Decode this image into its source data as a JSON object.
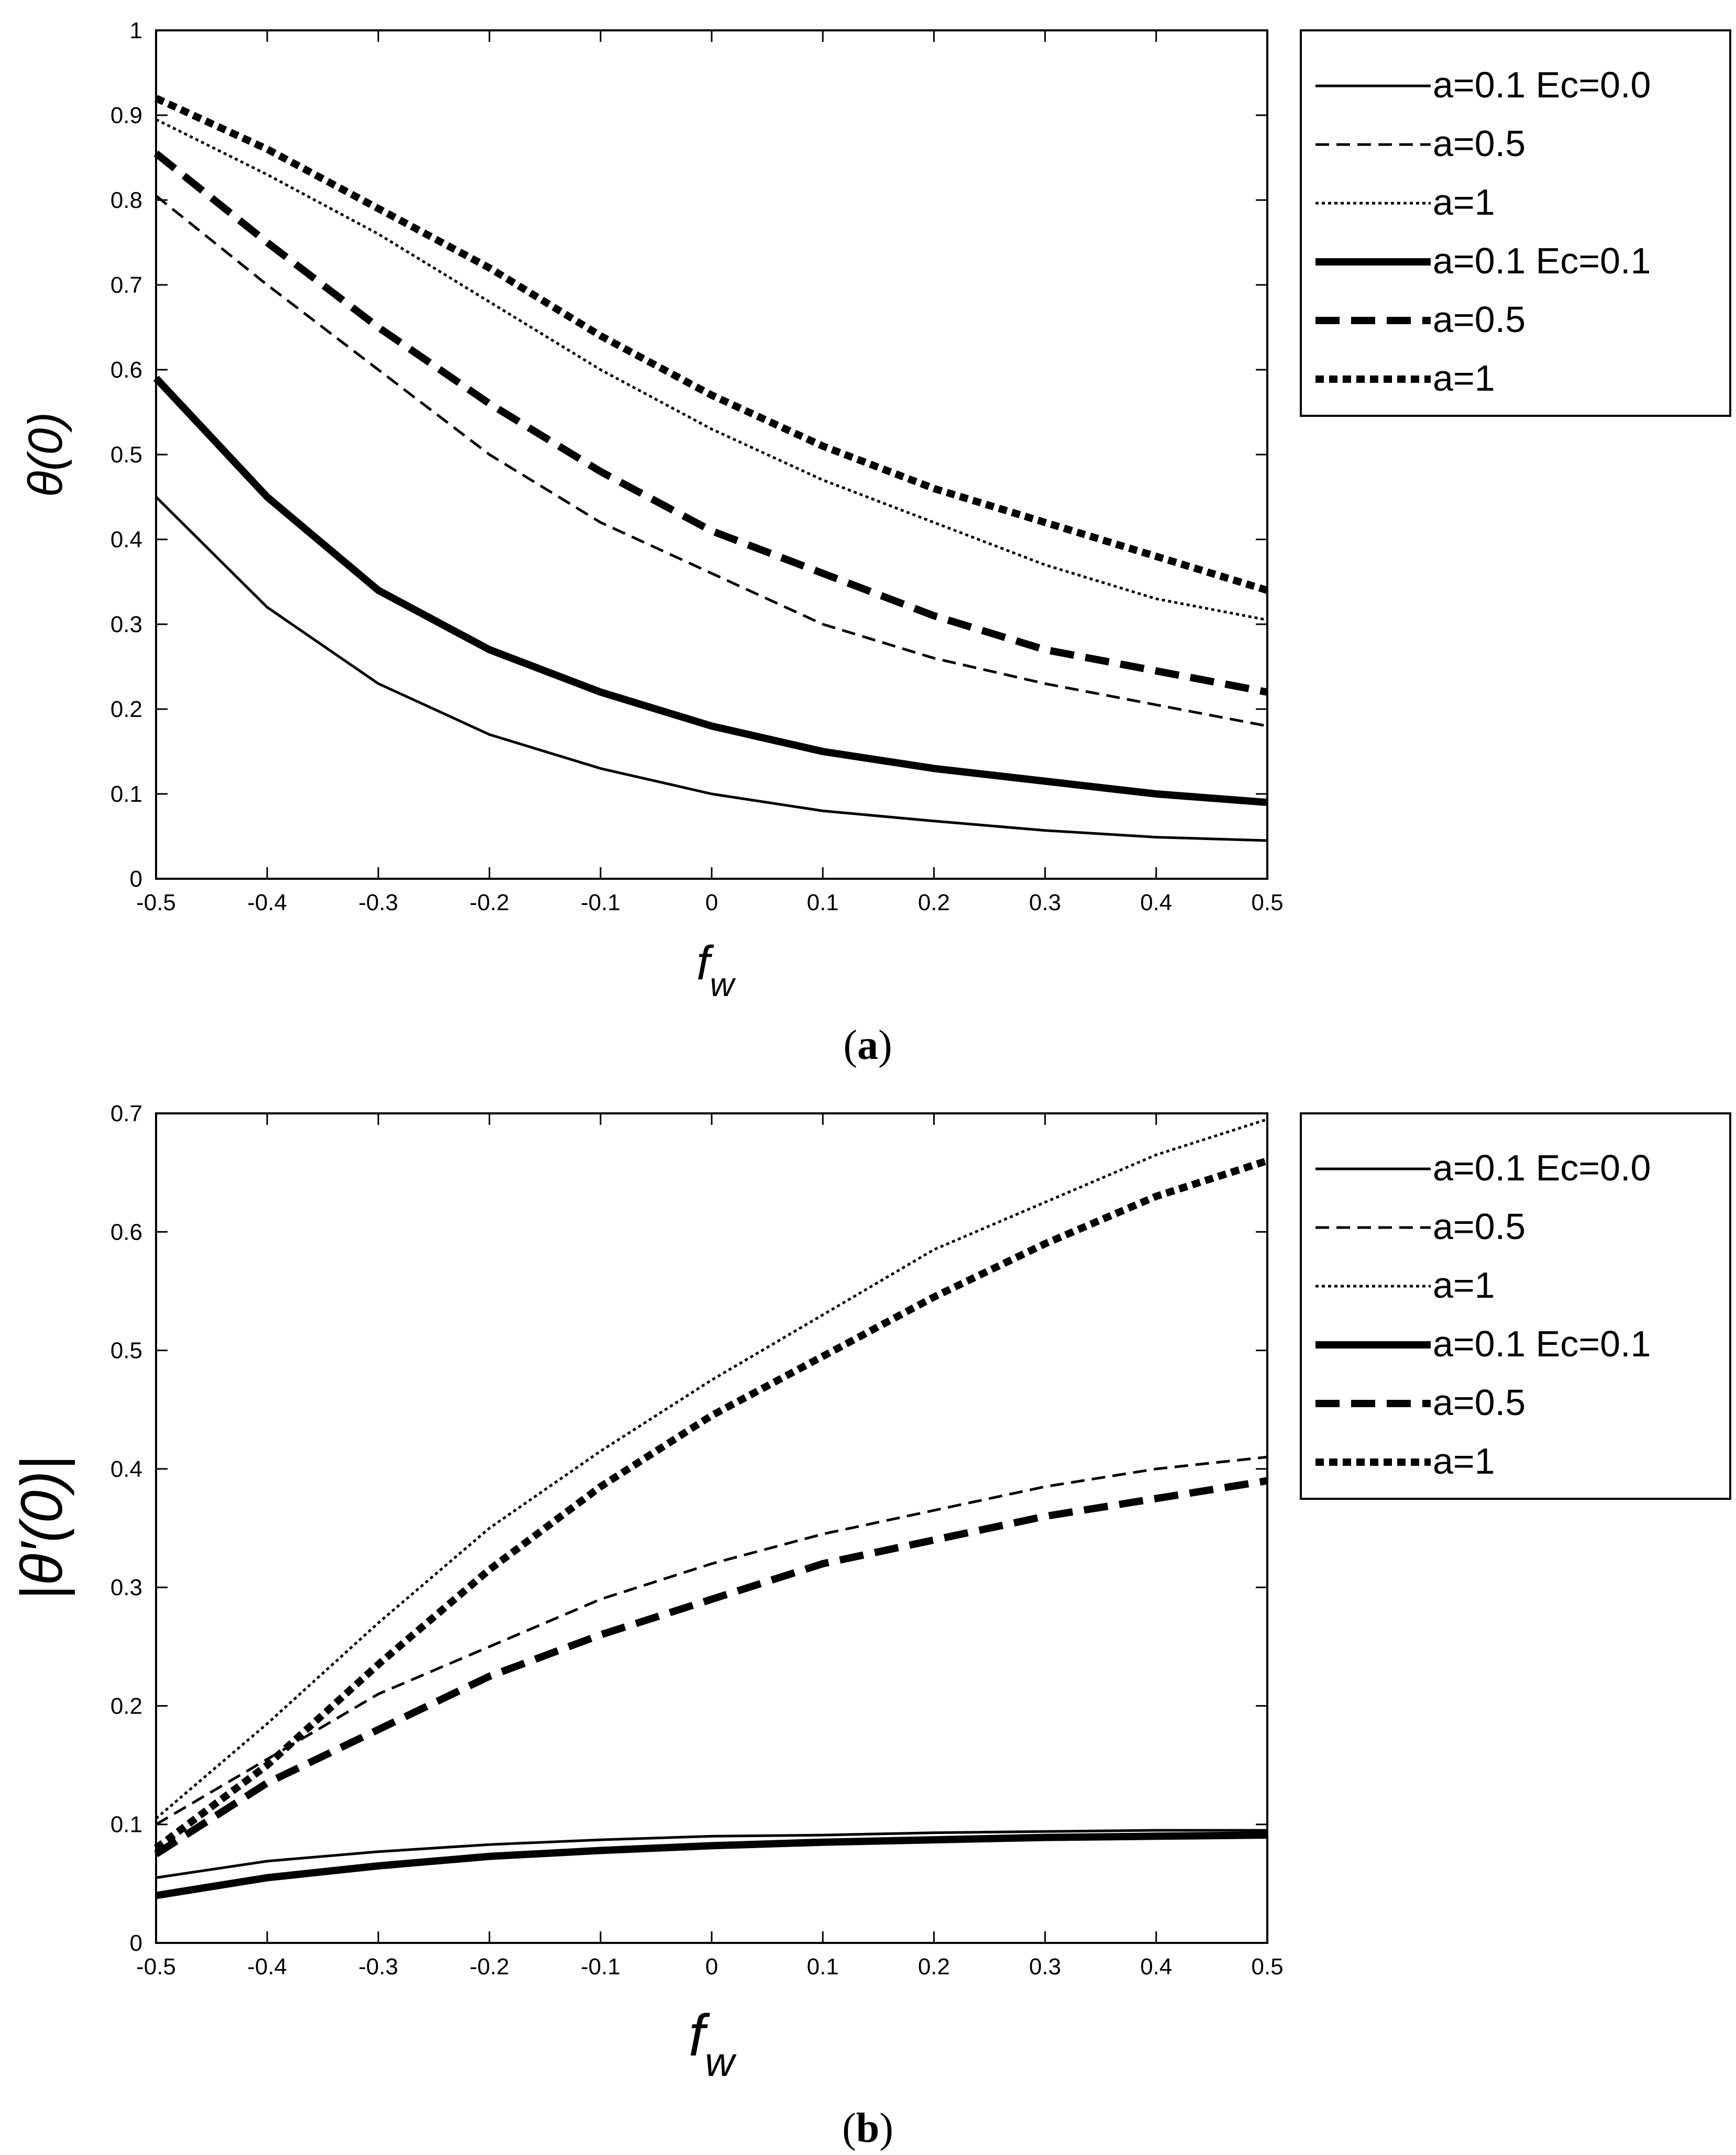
{
  "chart_data": [
    {
      "type": "line",
      "caption": "(a)",
      "caption_paren_open": "(",
      "caption_letter": "a",
      "caption_paren_close": ")",
      "xlabel": "f",
      "xlabel_sub": "w",
      "ylabel": "θ(0)",
      "xlim": [
        -0.5,
        0.5
      ],
      "ylim": [
        0,
        1
      ],
      "xticks": [
        "-0.5",
        "-0.4",
        "-0.3",
        "-0.2",
        "-0.1",
        "0",
        "0.1",
        "0.2",
        "0.3",
        "0.4",
        "0.5"
      ],
      "yticks": [
        "0",
        "0.1",
        "0.2",
        "0.3",
        "0.4",
        "0.5",
        "0.6",
        "0.7",
        "0.8",
        "0.9",
        "1"
      ],
      "grid": false,
      "legend_position": "outside-right",
      "x": [
        -0.5,
        -0.4,
        -0.3,
        -0.2,
        -0.1,
        0,
        0.1,
        0.2,
        0.3,
        0.4,
        0.5
      ],
      "series": [
        {
          "name": "a=0.1 Ec=0.0",
          "style": "solid",
          "weight": "thin",
          "values": [
            0.45,
            0.32,
            0.23,
            0.17,
            0.13,
            0.1,
            0.08,
            0.068,
            0.057,
            0.049,
            0.045
          ]
        },
        {
          "name": "a=0.5",
          "style": "dashed",
          "weight": "thin",
          "values": [
            0.805,
            0.7,
            0.6,
            0.5,
            0.42,
            0.36,
            0.3,
            0.26,
            0.23,
            0.205,
            0.18
          ]
        },
        {
          "name": "a=1",
          "style": "dotted",
          "weight": "thin",
          "values": [
            0.895,
            0.83,
            0.76,
            0.68,
            0.6,
            0.53,
            0.47,
            0.42,
            0.37,
            0.33,
            0.305
          ]
        },
        {
          "name": "a=0.1 Ec=0.1",
          "style": "solid",
          "weight": "thick",
          "values": [
            0.59,
            0.45,
            0.34,
            0.27,
            0.22,
            0.18,
            0.15,
            0.13,
            0.115,
            0.1,
            0.09
          ]
        },
        {
          "name": "a=0.5",
          "style": "dashed",
          "weight": "thick",
          "values": [
            0.855,
            0.75,
            0.65,
            0.56,
            0.48,
            0.41,
            0.36,
            0.31,
            0.27,
            0.245,
            0.22
          ]
        },
        {
          "name": "a=1",
          "style": "dotted",
          "weight": "thick",
          "values": [
            0.92,
            0.86,
            0.79,
            0.72,
            0.64,
            0.57,
            0.51,
            0.46,
            0.42,
            0.38,
            0.34
          ]
        }
      ]
    },
    {
      "type": "line",
      "caption": "(b)",
      "caption_paren_open": "(",
      "caption_letter": "b",
      "caption_paren_close": ")",
      "xlabel": "f",
      "xlabel_sub": "w",
      "ylabel": "|θ′(0)|",
      "xlim": [
        -0.5,
        0.5
      ],
      "ylim": [
        0,
        0.7
      ],
      "xticks": [
        "-0.5",
        "-0.4",
        "-0.3",
        "-0.2",
        "-0.1",
        "0",
        "0.1",
        "0.2",
        "0.3",
        "0.4",
        "0.5"
      ],
      "yticks": [
        "0",
        "0.1",
        "0.2",
        "0.3",
        "0.4",
        "0.5",
        "0.6",
        "0.7"
      ],
      "grid": false,
      "legend_position": "outside-right",
      "x": [
        -0.5,
        -0.4,
        -0.3,
        -0.2,
        -0.1,
        0,
        0.1,
        0.2,
        0.3,
        0.4,
        0.5
      ],
      "series": [
        {
          "name": "a=0.1 Ec=0.0",
          "style": "solid",
          "weight": "thin",
          "values": [
            0.055,
            0.069,
            0.077,
            0.083,
            0.087,
            0.09,
            0.091,
            0.093,
            0.094,
            0.095,
            0.095
          ]
        },
        {
          "name": "a=0.5",
          "style": "dashed",
          "weight": "thin",
          "values": [
            0.1,
            0.155,
            0.21,
            0.25,
            0.29,
            0.32,
            0.345,
            0.365,
            0.385,
            0.4,
            0.41
          ]
        },
        {
          "name": "a=1",
          "style": "dotted",
          "weight": "thin",
          "values": [
            0.105,
            0.185,
            0.27,
            0.35,
            0.415,
            0.475,
            0.53,
            0.585,
            0.625,
            0.665,
            0.695
          ]
        },
        {
          "name": "a=0.1 Ec=0.1",
          "style": "solid",
          "weight": "thick",
          "values": [
            0.04,
            0.055,
            0.065,
            0.073,
            0.078,
            0.082,
            0.085,
            0.087,
            0.089,
            0.09,
            0.091
          ]
        },
        {
          "name": "a=0.5",
          "style": "dashed",
          "weight": "thick",
          "values": [
            0.075,
            0.135,
            0.18,
            0.225,
            0.26,
            0.29,
            0.32,
            0.34,
            0.36,
            0.375,
            0.39
          ]
        },
        {
          "name": "a=1",
          "style": "dotted",
          "weight": "thick",
          "values": [
            0.08,
            0.15,
            0.235,
            0.315,
            0.385,
            0.445,
            0.495,
            0.545,
            0.59,
            0.63,
            0.66
          ]
        }
      ]
    }
  ],
  "style": {
    "ink": "#000000",
    "background": "#ffffff"
  }
}
